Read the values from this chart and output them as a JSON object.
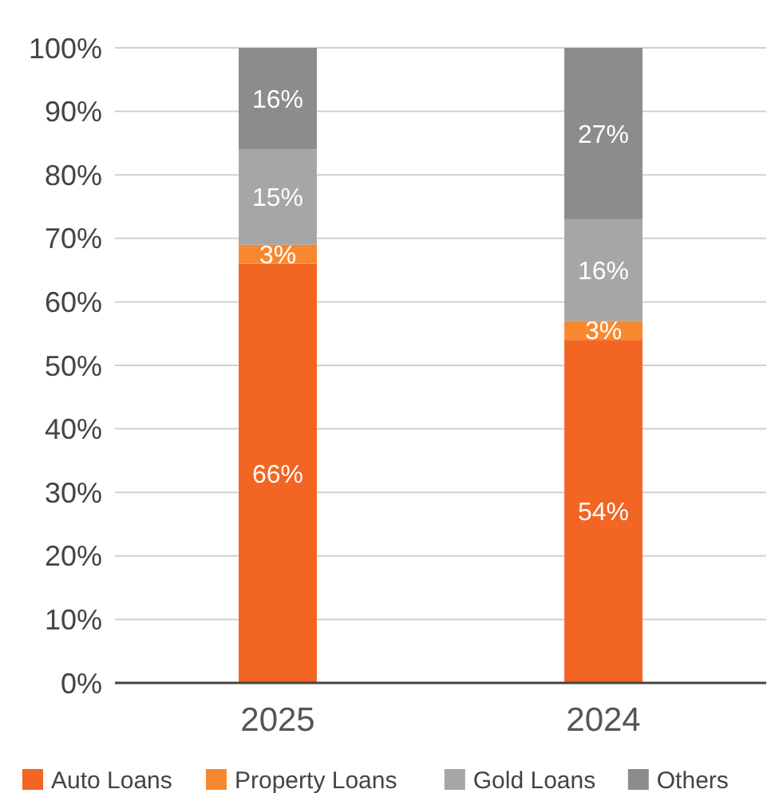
{
  "chart_data": {
    "type": "bar",
    "stacked": true,
    "categories": [
      "2025",
      "2024"
    ],
    "series": [
      {
        "name": "Auto Loans",
        "color": "#f26522",
        "values": [
          66,
          54
        ]
      },
      {
        "name": "Property Loans",
        "color": "#f7882f",
        "values": [
          3,
          3
        ]
      },
      {
        "name": "Gold Loans",
        "color": "#a6a6a6",
        "values": [
          15,
          16
        ]
      },
      {
        "name": "Others",
        "color": "#8c8c8c",
        "values": [
          16,
          27
        ]
      }
    ],
    "ylim": [
      0,
      100
    ],
    "yticks": [
      {
        "value": 0,
        "label": "0%"
      },
      {
        "value": 10,
        "label": "10%"
      },
      {
        "value": 20,
        "label": "20%"
      },
      {
        "value": 30,
        "label": "30%"
      },
      {
        "value": 40,
        "label": "40%"
      },
      {
        "value": 50,
        "label": "50%"
      },
      {
        "value": 60,
        "label": "60%"
      },
      {
        "value": 70,
        "label": "70%"
      },
      {
        "value": 80,
        "label": "80%"
      },
      {
        "value": 90,
        "label": "90%"
      },
      {
        "value": 100,
        "label": "100%"
      }
    ],
    "value_labels": [
      [
        "66%",
        "54%"
      ],
      [
        "3%",
        "3%"
      ],
      [
        "15%",
        "16%"
      ],
      [
        "16%",
        "27%"
      ]
    ],
    "grid": "y",
    "legend": "bottom"
  }
}
